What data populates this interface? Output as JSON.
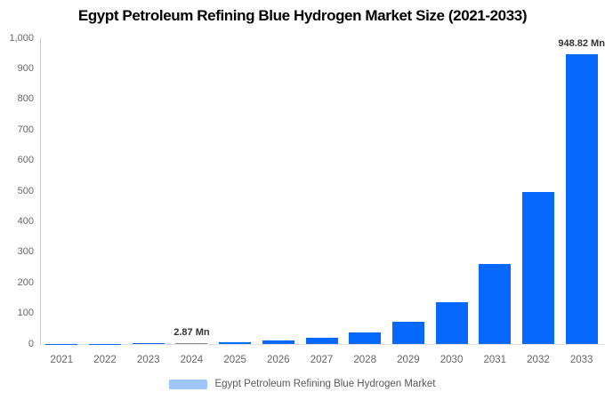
{
  "chart_data": {
    "type": "bar",
    "title": "Egypt Petroleum Refining Blue Hydrogen Market Size (2021-2033)",
    "categories": [
      "2021",
      "2022",
      "2023",
      "2024",
      "2025",
      "2026",
      "2027",
      "2028",
      "2029",
      "2030",
      "2031",
      "2032",
      "2033"
    ],
    "values": [
      0.41,
      0.79,
      1.51,
      2.87,
      5.47,
      10.42,
      19.85,
      37.81,
      72.03,
      137.26,
      261.5,
      497.99,
      948.82
    ],
    "unit": "Mn",
    "xlabel": "",
    "ylabel": "",
    "ylim": [
      0,
      1000
    ],
    "yticks": [
      0,
      100,
      200,
      300,
      400,
      500,
      600,
      700,
      800,
      900,
      1000
    ],
    "ytick_labels": [
      "0",
      "100",
      "200",
      "300",
      "400",
      "500",
      "600",
      "700",
      "800",
      "900",
      "1,000"
    ],
    "grid": false,
    "legend_position": "bottom",
    "bar_color": "#0768fd",
    "highlight": {
      "year": "2024",
      "color": "#8c8c8c"
    },
    "data_labels": [
      {
        "year": "2024",
        "text": "2.87 Mn"
      },
      {
        "year": "2033",
        "text": "948.82 Mn"
      }
    ],
    "legend": {
      "label": "Egypt Petroleum Refining Blue Hydrogen Market",
      "swatch_color": "#9ec5fe"
    }
  },
  "colors": {
    "title": "#000000",
    "tick_label": "#666666",
    "data_label": "#333333",
    "legend_text": "#595959",
    "axis_line": "#c9c9c9",
    "baseline": "#e0e0e0",
    "background": "#ffffff"
  }
}
